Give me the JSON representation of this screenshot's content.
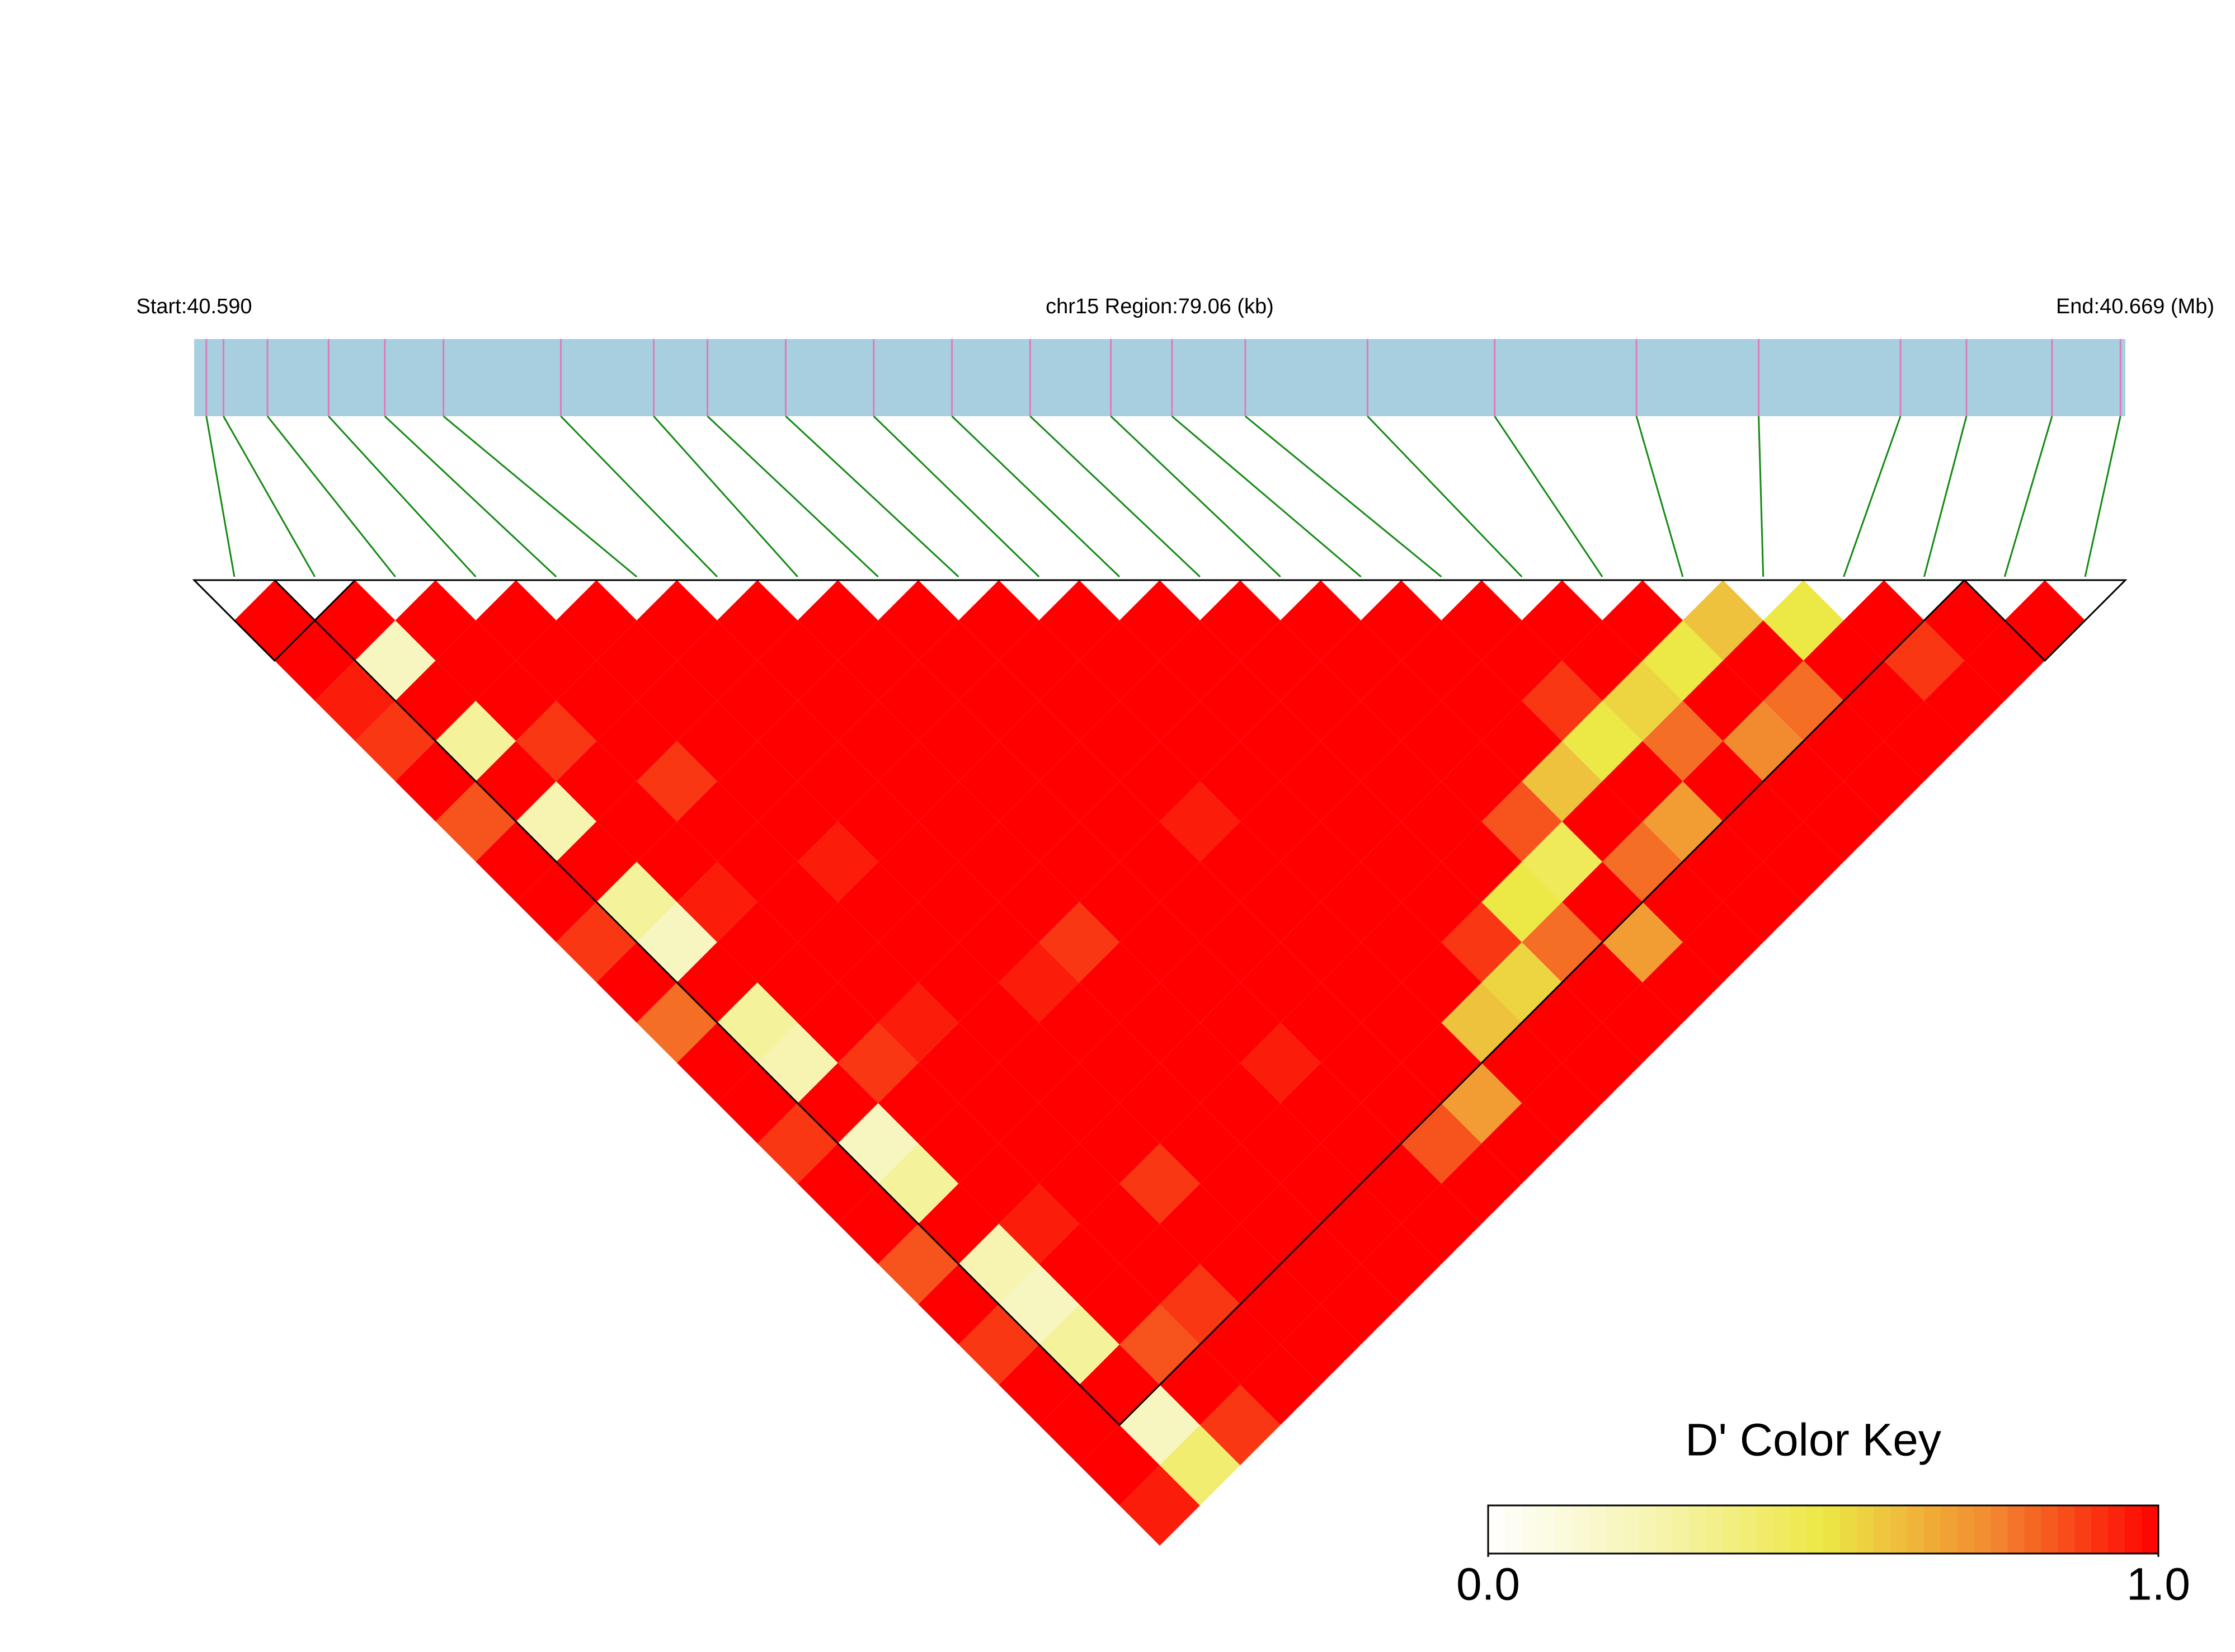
{
  "chart_data": {
    "type": "ld_heatmap",
    "start_label": "Start:40.590",
    "region_label": "chr15 Region:79.06 (kb)",
    "end_label": "End:40.669 (Mb)",
    "xlim": [
      40.59,
      40.669
    ],
    "snp_positions": [
      40.5905,
      40.5912,
      40.593,
      40.5955,
      40.5978,
      40.6002,
      40.605,
      40.6088,
      40.611,
      40.6142,
      40.6178,
      40.621,
      40.6242,
      40.6275,
      40.63,
      40.633,
      40.638,
      40.6432,
      40.649,
      40.654,
      40.6598,
      40.6625,
      40.666,
      40.6688
    ],
    "ld_matrix": [
      [
        1,
        1,
        0.95,
        0.9,
        1,
        0.85,
        1,
        1,
        0.9,
        1,
        0.8,
        1,
        1,
        0.9,
        1,
        1,
        0.85,
        1,
        0.9,
        1,
        1,
        1,
        0.95
      ],
      [
        1,
        0.2,
        1,
        0.3,
        1,
        0.25,
        1,
        0.3,
        0.2,
        1,
        0.3,
        0.25,
        1,
        0.2,
        0.3,
        1,
        0.25,
        0.2,
        0.3,
        1,
        0.2,
        0.4
      ],
      [
        1,
        1,
        1,
        0.9,
        1,
        1,
        1,
        0.95,
        1,
        1,
        1,
        0.9,
        1,
        1,
        1,
        0.95,
        1,
        1,
        0.85,
        1,
        0.9
      ],
      [
        1,
        1,
        1,
        1,
        0.9,
        1,
        1,
        1,
        1,
        1,
        0.95,
        1,
        1,
        1,
        1,
        1,
        1,
        0.9,
        1,
        1
      ],
      [
        1,
        1,
        1,
        1,
        1,
        1,
        0.95,
        1,
        1,
        1,
        1,
        1,
        1,
        1,
        0.9,
        1,
        1,
        1,
        1
      ],
      [
        1,
        1,
        1,
        1,
        1,
        1,
        1,
        1,
        1,
        0.95,
        1,
        1,
        1,
        1,
        1,
        1,
        1,
        1
      ],
      [
        1,
        1,
        1,
        1,
        1,
        1,
        1,
        1,
        0.9,
        1,
        1,
        1,
        1,
        1,
        1,
        1,
        1
      ],
      [
        1,
        1,
        1,
        1,
        1,
        1,
        1,
        1,
        1,
        1,
        1,
        0.95,
        1,
        1,
        1,
        1
      ],
      [
        1,
        1,
        1,
        1,
        1,
        1,
        1,
        1,
        1,
        1,
        1,
        1,
        1,
        0.85,
        1
      ],
      [
        1,
        1,
        1,
        1,
        1,
        0.95,
        1,
        1,
        1,
        1,
        1,
        1,
        0.7,
        1
      ],
      [
        1,
        1,
        1,
        1,
        1,
        1,
        1,
        1,
        1,
        1,
        0.6,
        1,
        1
      ],
      [
        1,
        1,
        1,
        1,
        1,
        1,
        1,
        1,
        0.9,
        0.55,
        1,
        1
      ],
      [
        1,
        1,
        1,
        1,
        1,
        1,
        1,
        0.5,
        0.8,
        1,
        1
      ],
      [
        1,
        1,
        1,
        1,
        1,
        0.85,
        0.45,
        1,
        0.7,
        1
      ],
      [
        1,
        1,
        1,
        1,
        0.6,
        1,
        0.8,
        1,
        1
      ],
      [
        1,
        1,
        0.9,
        0.5,
        1,
        0.7,
        1,
        1
      ],
      [
        1,
        1,
        0.55,
        0.8,
        1,
        1,
        1
      ],
      [
        1,
        0.5,
        1,
        0.75,
        1,
        1
      ],
      [
        0.6,
        1,
        0.8,
        1,
        1
      ],
      [
        0.5,
        1,
        1,
        1
      ],
      [
        1,
        0.9,
        1
      ],
      [
        1,
        1
      ],
      [
        1
      ]
    ],
    "blocks": [
      [
        0,
        1
      ],
      [
        1,
        21
      ],
      [
        22,
        23
      ]
    ],
    "colormap": [
      "#ffffff",
      "#f6f4b0",
      "#ece845",
      "#f28a30",
      "#ff0000"
    ],
    "bar_color": "#a8cfe0",
    "snp_color": "#e07ab8",
    "link_color": "#138a13",
    "key_title": "D' Color Key",
    "key_ticks": [
      {
        "value": 0,
        "label": "0.0"
      },
      {
        "value": 1,
        "label": "1.0"
      }
    ]
  }
}
